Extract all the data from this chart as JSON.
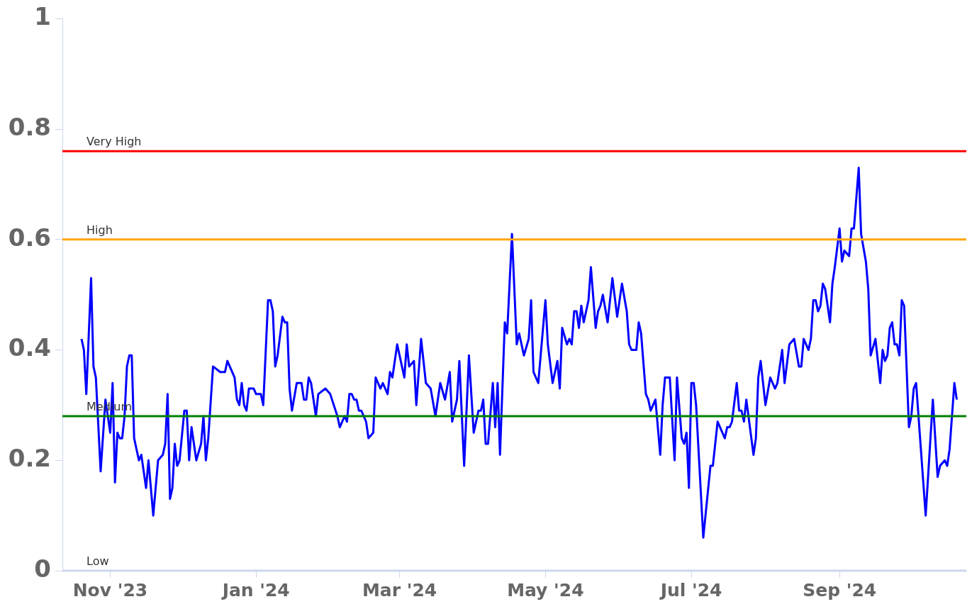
{
  "chart_data": {
    "type": "line",
    "x": [
      "2023-10-20",
      "2023-10-21",
      "2023-10-22",
      "2023-10-24",
      "2023-10-25",
      "2023-10-26",
      "2023-10-28",
      "2023-10-30",
      "2023-11-01",
      "2023-11-02",
      "2023-11-03",
      "2023-11-04",
      "2023-11-05",
      "2023-11-06",
      "2023-11-07",
      "2023-11-08",
      "2023-11-09",
      "2023-11-10",
      "2023-11-11",
      "2023-11-13",
      "2023-11-14",
      "2023-11-16",
      "2023-11-17",
      "2023-11-19",
      "2023-11-21",
      "2023-11-23",
      "2023-11-24",
      "2023-11-25",
      "2023-11-26",
      "2023-11-27",
      "2023-11-28",
      "2023-11-29",
      "2023-11-30",
      "2023-12-02",
      "2023-12-03",
      "2023-12-04",
      "2023-12-05",
      "2023-12-07",
      "2023-12-09",
      "2023-12-10",
      "2023-12-11",
      "2023-12-12",
      "2023-12-14",
      "2023-12-17",
      "2023-12-19",
      "2023-12-20",
      "2023-12-22",
      "2023-12-23",
      "2023-12-24",
      "2023-12-25",
      "2023-12-26",
      "2023-12-27",
      "2023-12-28",
      "2023-12-29",
      "2023-12-31",
      "2024-01-01",
      "2024-01-03",
      "2024-01-04",
      "2024-01-06",
      "2024-01-07",
      "2024-01-08",
      "2024-01-09",
      "2024-01-10",
      "2024-01-12",
      "2024-01-13",
      "2024-01-14",
      "2024-01-15",
      "2024-01-16",
      "2024-01-18",
      "2024-01-20",
      "2024-01-21",
      "2024-01-22",
      "2024-01-23",
      "2024-01-24",
      "2024-01-26",
      "2024-01-27",
      "2024-01-30",
      "2024-02-01",
      "2024-02-04",
      "2024-02-05",
      "2024-02-07",
      "2024-02-08",
      "2024-02-09",
      "2024-02-10",
      "2024-02-11",
      "2024-02-12",
      "2024-02-13",
      "2024-02-14",
      "2024-02-16",
      "2024-02-17",
      "2024-02-19",
      "2024-02-20",
      "2024-02-22",
      "2024-02-23",
      "2024-02-25",
      "2024-02-26",
      "2024-02-27",
      "2024-02-29",
      "2024-03-02",
      "2024-03-03",
      "2024-03-04",
      "2024-03-05",
      "2024-03-07",
      "2024-03-08",
      "2024-03-10",
      "2024-03-12",
      "2024-03-14",
      "2024-03-16",
      "2024-03-18",
      "2024-03-20",
      "2024-03-22",
      "2024-03-23",
      "2024-03-25",
      "2024-03-26",
      "2024-03-28",
      "2024-03-30",
      "2024-04-01",
      "2024-04-03",
      "2024-04-04",
      "2024-04-05",
      "2024-04-06",
      "2024-04-07",
      "2024-04-09",
      "2024-04-10",
      "2024-04-11",
      "2024-04-12",
      "2024-04-14",
      "2024-04-15",
      "2024-04-17",
      "2024-04-19",
      "2024-04-20",
      "2024-04-22",
      "2024-04-24",
      "2024-04-25",
      "2024-04-26",
      "2024-04-28",
      "2024-05-01",
      "2024-05-02",
      "2024-05-04",
      "2024-05-06",
      "2024-05-07",
      "2024-05-08",
      "2024-05-10",
      "2024-05-11",
      "2024-05-12",
      "2024-05-13",
      "2024-05-14",
      "2024-05-15",
      "2024-05-16",
      "2024-05-17",
      "2024-05-19",
      "2024-05-20",
      "2024-05-22",
      "2024-05-23",
      "2024-05-24",
      "2024-05-25",
      "2024-05-27",
      "2024-05-29",
      "2024-05-31",
      "2024-06-02",
      "2024-06-04",
      "2024-06-05",
      "2024-06-06",
      "2024-06-08",
      "2024-06-09",
      "2024-06-10",
      "2024-06-12",
      "2024-06-13",
      "2024-06-14",
      "2024-06-16",
      "2024-06-18",
      "2024-06-19",
      "2024-06-20",
      "2024-06-22",
      "2024-06-24",
      "2024-06-25",
      "2024-06-27",
      "2024-06-28",
      "2024-06-29",
      "2024-06-30",
      "2024-07-01",
      "2024-07-02",
      "2024-07-03",
      "2024-07-06",
      "2024-07-09",
      "2024-07-10",
      "2024-07-12",
      "2024-07-15",
      "2024-07-16",
      "2024-07-17",
      "2024-07-18",
      "2024-07-20",
      "2024-07-21",
      "2024-07-22",
      "2024-07-23",
      "2024-07-24",
      "2024-07-27",
      "2024-07-28",
      "2024-07-29",
      "2024-07-30",
      "2024-08-01",
      "2024-08-03",
      "2024-08-05",
      "2024-08-06",
      "2024-08-08",
      "2024-08-09",
      "2024-08-11",
      "2024-08-13",
      "2024-08-15",
      "2024-08-16",
      "2024-08-17",
      "2024-08-19",
      "2024-08-20",
      "2024-08-21",
      "2024-08-22",
      "2024-08-23",
      "2024-08-24",
      "2024-08-25",
      "2024-08-26",
      "2024-08-28",
      "2024-08-29",
      "2024-08-30",
      "2024-09-01",
      "2024-09-02",
      "2024-09-03",
      "2024-09-05",
      "2024-09-06",
      "2024-09-07",
      "2024-09-09",
      "2024-09-10",
      "2024-09-12",
      "2024-09-13",
      "2024-09-14",
      "2024-09-16",
      "2024-09-18",
      "2024-09-19",
      "2024-09-20",
      "2024-09-21",
      "2024-09-22",
      "2024-09-23",
      "2024-09-24",
      "2024-09-25",
      "2024-09-26",
      "2024-09-27",
      "2024-09-28",
      "2024-09-30",
      "2024-10-01",
      "2024-10-02",
      "2024-10-03",
      "2024-10-05",
      "2024-10-07",
      "2024-10-10",
      "2024-10-12",
      "2024-10-13",
      "2024-10-15",
      "2024-10-16",
      "2024-10-17",
      "2024-10-19",
      "2024-10-20"
    ],
    "series": [
      {
        "color": "#0000ff",
        "values": [
          0.42,
          0.4,
          0.32,
          0.53,
          0.37,
          0.35,
          0.18,
          0.31,
          0.25,
          0.34,
          0.16,
          0.25,
          0.24,
          0.24,
          0.28,
          0.37,
          0.39,
          0.39,
          0.24,
          0.2,
          0.21,
          0.15,
          0.2,
          0.1,
          0.2,
          0.21,
          0.23,
          0.32,
          0.13,
          0.15,
          0.23,
          0.19,
          0.2,
          0.29,
          0.29,
          0.2,
          0.26,
          0.2,
          0.23,
          0.28,
          0.2,
          0.24,
          0.37,
          0.36,
          0.36,
          0.38,
          0.36,
          0.35,
          0.31,
          0.3,
          0.34,
          0.3,
          0.29,
          0.33,
          0.33,
          0.32,
          0.32,
          0.3,
          0.49,
          0.49,
          0.47,
          0.37,
          0.39,
          0.46,
          0.45,
          0.45,
          0.33,
          0.29,
          0.34,
          0.34,
          0.31,
          0.31,
          0.35,
          0.34,
          0.28,
          0.32,
          0.33,
          0.32,
          0.28,
          0.26,
          0.28,
          0.27,
          0.32,
          0.32,
          0.31,
          0.31,
          0.29,
          0.29,
          0.27,
          0.24,
          0.25,
          0.35,
          0.33,
          0.34,
          0.32,
          0.36,
          0.35,
          0.41,
          0.37,
          0.35,
          0.41,
          0.37,
          0.38,
          0.3,
          0.42,
          0.34,
          0.33,
          0.28,
          0.34,
          0.31,
          0.36,
          0.27,
          0.31,
          0.38,
          0.19,
          0.39,
          0.25,
          0.29,
          0.29,
          0.31,
          0.23,
          0.23,
          0.34,
          0.26,
          0.34,
          0.21,
          0.45,
          0.43,
          0.61,
          0.41,
          0.43,
          0.39,
          0.42,
          0.49,
          0.36,
          0.34,
          0.49,
          0.41,
          0.34,
          0.38,
          0.33,
          0.44,
          0.41,
          0.42,
          0.41,
          0.47,
          0.47,
          0.44,
          0.48,
          0.45,
          0.49,
          0.55,
          0.44,
          0.47,
          0.48,
          0.5,
          0.45,
          0.53,
          0.46,
          0.52,
          0.47,
          0.41,
          0.4,
          0.4,
          0.45,
          0.43,
          0.32,
          0.31,
          0.29,
          0.31,
          0.21,
          0.3,
          0.35,
          0.35,
          0.2,
          0.35,
          0.24,
          0.23,
          0.25,
          0.15,
          0.34,
          0.34,
          0.3,
          0.06,
          0.19,
          0.19,
          0.27,
          0.24,
          0.26,
          0.26,
          0.27,
          0.34,
          0.29,
          0.29,
          0.27,
          0.31,
          0.21,
          0.24,
          0.35,
          0.38,
          0.3,
          0.35,
          0.33,
          0.34,
          0.4,
          0.34,
          0.41,
          0.42,
          0.37,
          0.37,
          0.42,
          0.4,
          0.42,
          0.49,
          0.49,
          0.47,
          0.48,
          0.52,
          0.51,
          0.45,
          0.52,
          0.55,
          0.62,
          0.56,
          0.58,
          0.57,
          0.62,
          0.62,
          0.73,
          0.61,
          0.56,
          0.51,
          0.39,
          0.42,
          0.34,
          0.4,
          0.38,
          0.39,
          0.44,
          0.45,
          0.41,
          0.41,
          0.39,
          0.49,
          0.48,
          0.26,
          0.28,
          0.33,
          0.34,
          0.22,
          0.1,
          0.31,
          0.17,
          0.19,
          0.2,
          0.19,
          0.22,
          0.34,
          0.31
        ]
      }
    ],
    "xlim": [
      "2023-10-12",
      "2024-10-24"
    ],
    "xticks": [
      {
        "value": "2023-11-01",
        "label": "Nov '23"
      },
      {
        "value": "2024-01-01",
        "label": "Jan '24"
      },
      {
        "value": "2024-03-01",
        "label": "Mar '24"
      },
      {
        "value": "2024-05-01",
        "label": "May '24"
      },
      {
        "value": "2024-07-01",
        "label": "Jul '24"
      },
      {
        "value": "2024-09-01",
        "label": "Sep '24"
      }
    ],
    "ylim": [
      0,
      1
    ],
    "yticks": [
      0,
      0.2,
      0.4,
      0.6,
      0.8,
      1
    ],
    "marker": "none",
    "line_style": "solid",
    "ref_lines": [
      {
        "axis": "y",
        "value": 0.76,
        "label": "Very High",
        "color": "#ff0000"
      },
      {
        "axis": "y",
        "value": 0.6,
        "label": "High",
        "color": "#ffa500"
      },
      {
        "axis": "y",
        "value": 0.28,
        "label": "Medium",
        "color": "#008000"
      },
      {
        "axis": "y",
        "value": 0,
        "label": "Low",
        "color": "#ccd6eb"
      }
    ]
  }
}
